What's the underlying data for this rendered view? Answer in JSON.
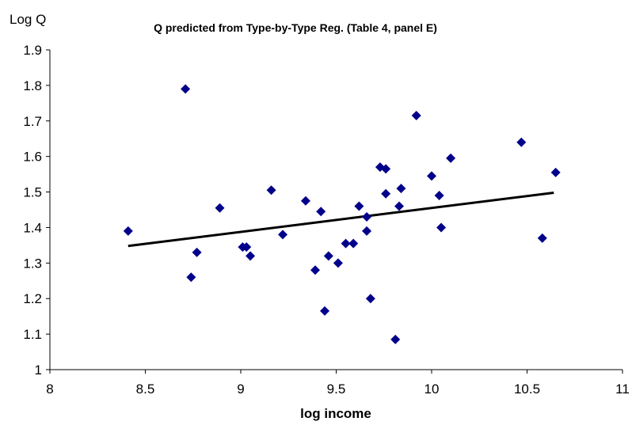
{
  "chart_data": {
    "type": "scatter",
    "title": "Q predicted from Type-by-Type Reg. (Table 4, panel E)",
    "xlabel": "log income",
    "ylabel": "Log Q",
    "xlim": [
      8,
      11
    ],
    "ylim": [
      1,
      1.9
    ],
    "x_ticks": [
      8,
      8.5,
      9,
      9.5,
      10,
      10.5,
      11
    ],
    "y_ticks": [
      1,
      1.1,
      1.2,
      1.3,
      1.4,
      1.5,
      1.6,
      1.7,
      1.8,
      1.9
    ],
    "x_tick_labels": [
      "8",
      "8.5",
      "9",
      "9.5",
      "10",
      "10.5",
      "11"
    ],
    "y_tick_labels": [
      "1",
      "1.1",
      "1.2",
      "1.3",
      "1.4",
      "1.5",
      "1.6",
      "1.7",
      "1.8",
      "1.9"
    ],
    "grid": false,
    "legend": "none",
    "series": [
      {
        "type": "scatter",
        "marker": "diamond",
        "color": "#00008B",
        "points": [
          {
            "x": 8.41,
            "y": 1.39
          },
          {
            "x": 8.71,
            "y": 1.79
          },
          {
            "x": 8.74,
            "y": 1.26
          },
          {
            "x": 8.77,
            "y": 1.33
          },
          {
            "x": 8.89,
            "y": 1.455
          },
          {
            "x": 9.01,
            "y": 1.345
          },
          {
            "x": 9.03,
            "y": 1.345
          },
          {
            "x": 9.05,
            "y": 1.32
          },
          {
            "x": 9.16,
            "y": 1.505
          },
          {
            "x": 9.22,
            "y": 1.38
          },
          {
            "x": 9.34,
            "y": 1.475
          },
          {
            "x": 9.39,
            "y": 1.28
          },
          {
            "x": 9.42,
            "y": 1.445
          },
          {
            "x": 9.44,
            "y": 1.165
          },
          {
            "x": 9.46,
            "y": 1.32
          },
          {
            "x": 9.51,
            "y": 1.3
          },
          {
            "x": 9.55,
            "y": 1.355
          },
          {
            "x": 9.59,
            "y": 1.355
          },
          {
            "x": 9.62,
            "y": 1.46
          },
          {
            "x": 9.66,
            "y": 1.43
          },
          {
            "x": 9.66,
            "y": 1.39
          },
          {
            "x": 9.68,
            "y": 1.2
          },
          {
            "x": 9.73,
            "y": 1.57
          },
          {
            "x": 9.76,
            "y": 1.565
          },
          {
            "x": 9.76,
            "y": 1.495
          },
          {
            "x": 9.81,
            "y": 1.085
          },
          {
            "x": 9.83,
            "y": 1.46
          },
          {
            "x": 9.84,
            "y": 1.51
          },
          {
            "x": 9.92,
            "y": 1.715
          },
          {
            "x": 10.0,
            "y": 1.545
          },
          {
            "x": 10.04,
            "y": 1.49
          },
          {
            "x": 10.05,
            "y": 1.4
          },
          {
            "x": 10.1,
            "y": 1.595
          },
          {
            "x": 10.47,
            "y": 1.64
          },
          {
            "x": 10.58,
            "y": 1.37
          },
          {
            "x": 10.65,
            "y": 1.555
          }
        ]
      },
      {
        "type": "line",
        "color": "#000000",
        "points": [
          {
            "x": 8.41,
            "y": 1.348
          },
          {
            "x": 10.64,
            "y": 1.498
          }
        ]
      }
    ]
  }
}
